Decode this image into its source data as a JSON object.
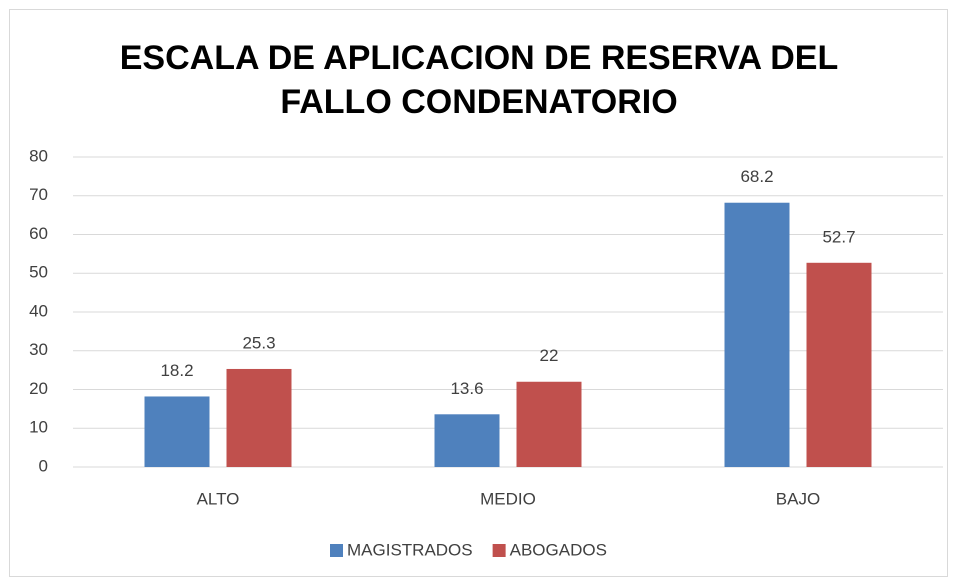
{
  "chart_data": {
    "type": "bar",
    "title": "ESCALA DE APLICACION DE RESERVA DEL FALLO CONDENATORIO",
    "categories": [
      "ALTO",
      "MEDIO",
      "BAJO"
    ],
    "series": [
      {
        "name": "MAGISTRADOS",
        "color": "#4f81bd",
        "values": [
          18.2,
          13.6,
          68.2
        ]
      },
      {
        "name": "ABOGADOS",
        "color": "#c0504d",
        "values": [
          25.3,
          22,
          52.7
        ]
      }
    ],
    "ylim": [
      0,
      80
    ],
    "yticks": [
      0,
      10,
      20,
      30,
      40,
      50,
      60,
      70,
      80
    ],
    "grid": true,
    "legend": "bottom"
  }
}
